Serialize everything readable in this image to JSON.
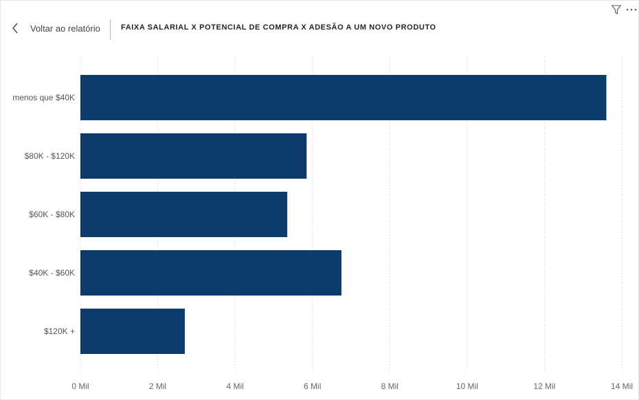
{
  "header": {
    "back_label": "Voltar ao relatório",
    "title": "FAIXA SALARIAL X POTENCIAL DE COMPRA X ADESÃO A UM NOVO PRODUTO",
    "icons": [
      "filter-icon",
      "more-options-icon"
    ]
  },
  "chart_data": {
    "type": "bar",
    "orientation": "horizontal",
    "categories": [
      "menos que $40K",
      "$80K - $120K",
      "$60K - $80K",
      "$40K - $60K",
      "$120K +"
    ],
    "values": [
      13600,
      5850,
      5350,
      6750,
      2700
    ],
    "xlim": [
      0,
      14000
    ],
    "x_ticks": [
      0,
      2000,
      4000,
      6000,
      8000,
      10000,
      12000,
      14000
    ],
    "x_tick_labels": [
      "0 Mil",
      "2 Mil",
      "4 Mil",
      "6 Mil",
      "8 Mil",
      "10 Mil",
      "12 Mil",
      "14 Mil"
    ],
    "grid": true,
    "bar_color": "#0d3b6b"
  }
}
